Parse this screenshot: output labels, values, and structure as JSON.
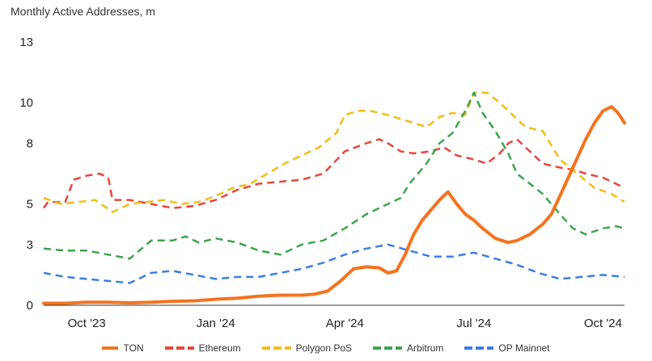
{
  "chart_data": {
    "type": "line",
    "title": "Monthly Active Addresses, m",
    "xlabel": "",
    "ylabel": "",
    "ylim": [
      0,
      13
    ],
    "yticks": [
      0,
      3,
      5,
      8,
      10,
      13
    ],
    "xlim": [
      0,
      13.5
    ],
    "x_ticks": [
      {
        "label": "Oct '23",
        "x": 1
      },
      {
        "label": "Jan '24",
        "x": 4
      },
      {
        "label": "Apr '24",
        "x": 7
      },
      {
        "label": "Jul '24",
        "x": 10
      },
      {
        "label": "Oct '24",
        "x": 13
      }
    ],
    "series": [
      {
        "name": "TON",
        "color": "#f5731f",
        "dash": "solid",
        "width": 4,
        "x": [
          0,
          0.5,
          1,
          1.5,
          2,
          2.5,
          3,
          3.5,
          4,
          4.5,
          5,
          5.5,
          6,
          6.3,
          6.6,
          6.9,
          7.2,
          7.5,
          7.8,
          8,
          8.2,
          8.4,
          8.6,
          8.8,
          9,
          9.2,
          9.4,
          9.6,
          9.8,
          10,
          10.2,
          10.5,
          10.8,
          11,
          11.3,
          11.6,
          11.8,
          12,
          12.3,
          12.6,
          12.8,
          13,
          13.2,
          13.35,
          13.5
        ],
        "values": [
          0.1,
          0.1,
          0.15,
          0.15,
          0.12,
          0.15,
          0.2,
          0.22,
          0.3,
          0.35,
          0.45,
          0.5,
          0.5,
          0.55,
          0.7,
          1.2,
          1.8,
          1.9,
          1.85,
          1.6,
          1.7,
          2.5,
          3.5,
          4.2,
          4.7,
          5.2,
          5.6,
          5.0,
          4.5,
          4.2,
          3.8,
          3.3,
          3.1,
          3.2,
          3.5,
          4.0,
          4.5,
          5.4,
          6.8,
          8.2,
          9.0,
          9.6,
          9.8,
          9.5,
          9.0
        ]
      },
      {
        "name": "Ethereum",
        "color": "#e8453c",
        "dash": "dashed",
        "width": 2.5,
        "x": [
          0,
          0.1,
          0.5,
          0.7,
          1,
          1.3,
          1.5,
          1.6,
          2,
          2.5,
          3,
          3.5,
          4,
          4.5,
          5,
          5.5,
          6,
          6.5,
          7,
          7.5,
          7.8,
          8,
          8.3,
          8.6,
          9,
          9.3,
          9.6,
          10,
          10.3,
          10.6,
          10.8,
          11,
          11.3,
          11.6,
          12,
          12.3,
          12.6,
          13,
          13.3,
          13.5
        ],
        "values": [
          4.8,
          5.1,
          5.1,
          6.2,
          6.4,
          6.5,
          6.3,
          5.2,
          5.2,
          5.0,
          4.8,
          4.9,
          5.2,
          5.7,
          6.0,
          6.1,
          6.2,
          6.5,
          7.6,
          8.0,
          8.2,
          8.0,
          7.6,
          7.5,
          7.6,
          7.8,
          7.4,
          7.2,
          7.0,
          7.5,
          8.0,
          8.2,
          7.6,
          7.0,
          6.8,
          6.7,
          6.5,
          6.3,
          6.0,
          5.8
        ]
      },
      {
        "name": "Polygon PoS",
        "color": "#f2bd16",
        "dash": "dashed",
        "width": 2.5,
        "x": [
          0,
          0.4,
          0.8,
          1.2,
          1.6,
          2,
          2.4,
          2.8,
          3.2,
          3.6,
          4,
          4.4,
          4.8,
          5.2,
          5.6,
          6,
          6.4,
          6.8,
          7,
          7.3,
          7.6,
          8,
          8.3,
          8.6,
          8.9,
          9.2,
          9.5,
          9.8,
          10,
          10.3,
          10.6,
          10.9,
          11.2,
          11.6,
          12,
          12.4,
          12.8,
          13.2,
          13.5
        ],
        "values": [
          5.3,
          5.0,
          5.1,
          5.2,
          4.6,
          5.0,
          5.1,
          5.2,
          5.0,
          5.1,
          5.4,
          5.8,
          6.0,
          6.5,
          7.0,
          7.4,
          7.8,
          8.5,
          9.4,
          9.6,
          9.6,
          9.4,
          9.2,
          9.0,
          8.8,
          9.3,
          9.5,
          9.4,
          10.5,
          10.5,
          10.0,
          9.4,
          8.8,
          8.6,
          7.2,
          6.5,
          5.8,
          5.5,
          5.1
        ]
      },
      {
        "name": "Arbitrum",
        "color": "#3fa34d",
        "dash": "dashed",
        "width": 2.5,
        "x": [
          0,
          0.5,
          1,
          1.5,
          2,
          2.5,
          3,
          3.3,
          3.6,
          4,
          4.5,
          5,
          5.5,
          6,
          6.5,
          7,
          7.5,
          8,
          8.3,
          8.5,
          8.7,
          8.9,
          9.2,
          9.5,
          9.8,
          10,
          10.2,
          10.5,
          10.8,
          11,
          11.3,
          11.6,
          12,
          12.3,
          12.6,
          13,
          13.3,
          13.5
        ],
        "values": [
          2.8,
          2.7,
          2.7,
          2.5,
          2.3,
          3.2,
          3.2,
          3.4,
          3.1,
          3.3,
          3.1,
          2.7,
          2.5,
          3.0,
          3.2,
          3.8,
          4.5,
          5.0,
          5.3,
          6.0,
          6.5,
          7.0,
          8.0,
          8.5,
          9.6,
          10.5,
          9.5,
          8.6,
          7.5,
          6.5,
          6.0,
          5.5,
          4.5,
          3.8,
          3.5,
          3.8,
          3.9,
          3.8
        ]
      },
      {
        "name": "OP Mainnet",
        "color": "#3d7de5",
        "dash": "dashed",
        "width": 2.5,
        "x": [
          0,
          0.5,
          1,
          1.5,
          2,
          2.5,
          3,
          3.5,
          4,
          4.5,
          5,
          5.5,
          6,
          6.5,
          7,
          7.5,
          8,
          8.5,
          9,
          9.5,
          10,
          10.5,
          11,
          11.5,
          12,
          12.5,
          13,
          13.5
        ],
        "values": [
          1.6,
          1.4,
          1.3,
          1.2,
          1.1,
          1.6,
          1.7,
          1.5,
          1.3,
          1.4,
          1.4,
          1.6,
          1.8,
          2.1,
          2.5,
          2.8,
          3.0,
          2.7,
          2.4,
          2.4,
          2.6,
          2.3,
          2.0,
          1.6,
          1.3,
          1.4,
          1.5,
          1.4
        ]
      }
    ]
  }
}
